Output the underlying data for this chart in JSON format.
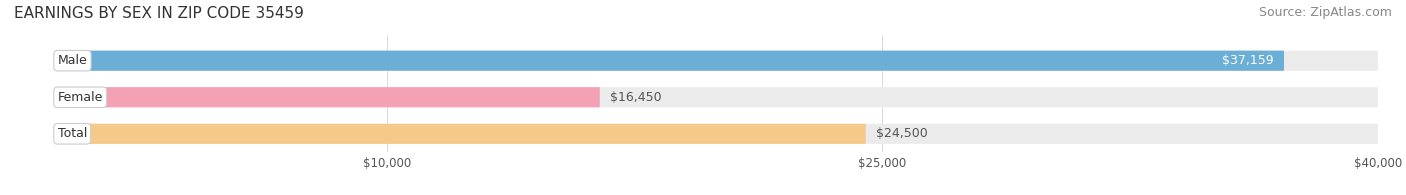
{
  "title": "EARNINGS BY SEX IN ZIP CODE 35459",
  "source": "Source: ZipAtlas.com",
  "categories": [
    "Male",
    "Female",
    "Total"
  ],
  "values": [
    37159,
    16450,
    24500
  ],
  "bar_colors": [
    "#6baed6",
    "#f4a0b5",
    "#f5c98a"
  ],
  "bar_bg_color": "#ebebeb",
  "label_texts": [
    "$37,159",
    "$16,450",
    "$24,500"
  ],
  "x_max": 40000,
  "x_ticks": [
    10000,
    25000,
    40000
  ],
  "x_tick_labels": [
    "$10,000",
    "$25,000",
    "$40,000"
  ],
  "background_color": "#ffffff",
  "title_fontsize": 11,
  "source_fontsize": 9,
  "label_fontsize": 9,
  "category_fontsize": 9
}
